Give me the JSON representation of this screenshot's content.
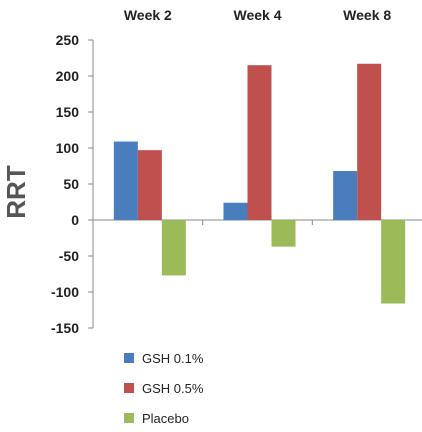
{
  "chart_data": {
    "type": "bar",
    "title": "",
    "xlabel": "",
    "ylabel": "RRT",
    "categories": [
      "Week 2",
      "Week 4",
      "Week 8"
    ],
    "series": [
      {
        "name": "GSH 0.1%",
        "values": [
          109,
          24,
          68
        ],
        "color": "#4a7dbe"
      },
      {
        "name": "GSH 0.5%",
        "values": [
          97,
          215,
          217
        ],
        "color": "#c0504d"
      },
      {
        "name": "Placebo",
        "values": [
          -77,
          -37,
          -116
        ],
        "color": "#9bbb59"
      }
    ],
    "ylim": [
      -150,
      250
    ],
    "yticks": [
      250,
      200,
      150,
      100,
      50,
      0,
      -50,
      -100,
      -150
    ],
    "grid": false,
    "legend": "bottom-left"
  }
}
